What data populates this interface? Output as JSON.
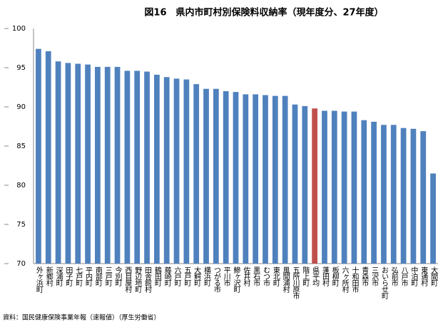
{
  "chart_data": {
    "type": "bar",
    "title": "図16　県内市町村別保険料収納率（現年度分、27年度）",
    "source": "資料：国民健康保険事業年報（速報値）（厚生労働省）",
    "categories": [
      "外ヶ浜町",
      "新郷村",
      "深浦町",
      "田子町",
      "七戸町",
      "平内町",
      "南部町",
      "三戸町",
      "今別町",
      "西目屋村",
      "野辺地町",
      "田舎館村",
      "鶴田町",
      "藤崎町",
      "六戸町",
      "五戸町",
      "大鰐町",
      "横浜町",
      "つがる市",
      "平川市",
      "鰺ヶ沢町",
      "佐井村",
      "黒石市",
      "むつ市",
      "東北町",
      "風間浦村",
      "五所川原市",
      "階上町",
      "県平均",
      "蓬田村",
      "板柳町",
      "六ヶ所村",
      "十和田市",
      "青森市",
      "三沢市",
      "おいらせ町",
      "弘前市",
      "八戸市",
      "中泊町",
      "東通村",
      "大間町"
    ],
    "values": [
      97.4,
      97.1,
      95.8,
      95.6,
      95.5,
      95.4,
      95.1,
      95.1,
      95.1,
      94.6,
      94.6,
      94.5,
      94.1,
      93.8,
      93.6,
      93.5,
      92.9,
      92.3,
      92.3,
      92.0,
      91.9,
      91.6,
      91.6,
      91.5,
      91.4,
      91.4,
      90.3,
      90.1,
      89.8,
      89.5,
      89.5,
      89.4,
      89.4,
      88.3,
      88.1,
      87.7,
      87.7,
      87.3,
      87.2,
      86.9,
      81.5
    ],
    "color": "#4f81bd",
    "highlight_color": "#c0504d",
    "highlight_category": "県平均",
    "ylim": [
      70,
      100
    ],
    "yticks": [
      70,
      75,
      80,
      85,
      90,
      95,
      100
    ],
    "grid": false
  }
}
